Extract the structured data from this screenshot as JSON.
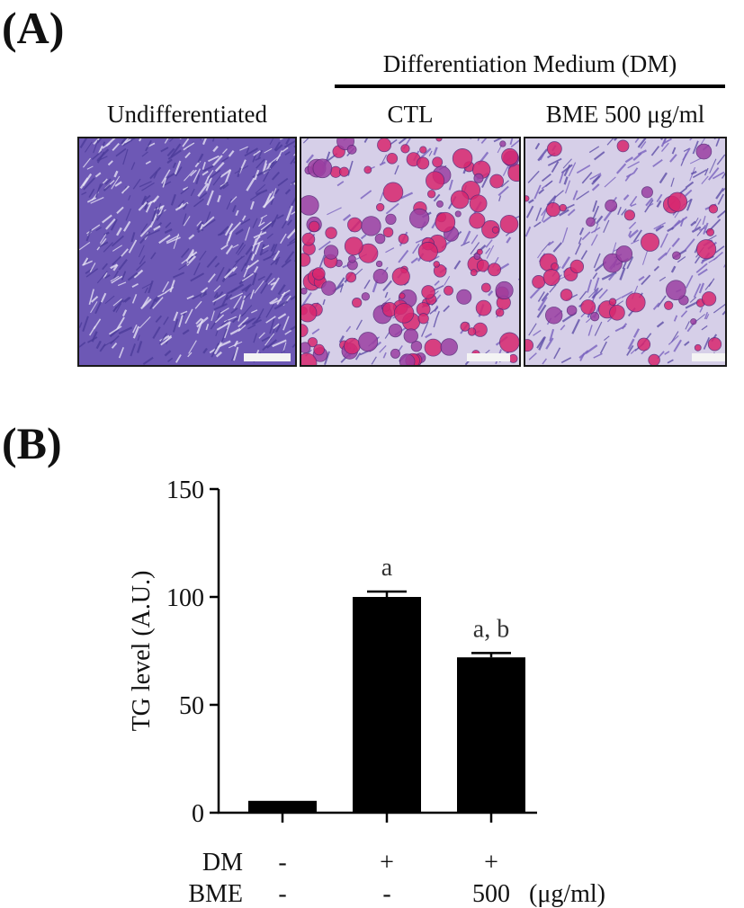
{
  "panel_a": {
    "letter": "(A)",
    "group_header": "Differentiation Medium (DM)",
    "columns": [
      {
        "label": "Undifferentiated"
      },
      {
        "label": "CTL"
      },
      {
        "label": "BME 500 μg/ml"
      }
    ],
    "colors": {
      "background_purple": "#6d58b5",
      "lipid_red": "#d8276f",
      "light_gap": "#d6cfe8",
      "scale_bar": "#f4f4f4"
    }
  },
  "panel_b": {
    "letter": "(B)"
  },
  "chart_data": {
    "type": "bar",
    "title": "",
    "xlabel": "",
    "ylabel": "TG level (A.U.)",
    "ylim": [
      0,
      150
    ],
    "yticks": [
      0,
      50,
      100,
      150
    ],
    "categories": [
      "",
      "",
      ""
    ],
    "values": [
      5.5,
      100,
      72
    ],
    "errors": [
      0,
      2.5,
      2
    ],
    "annotations": [
      "",
      "a",
      "a, b"
    ],
    "bar_color": "#000000",
    "condition_rows": [
      {
        "label": "DM",
        "values": [
          "-",
          "+",
          "+"
        ]
      },
      {
        "label": "BME",
        "values": [
          "-",
          "-",
          "500"
        ],
        "unit": "(μg/ml)"
      }
    ],
    "grid": false
  }
}
